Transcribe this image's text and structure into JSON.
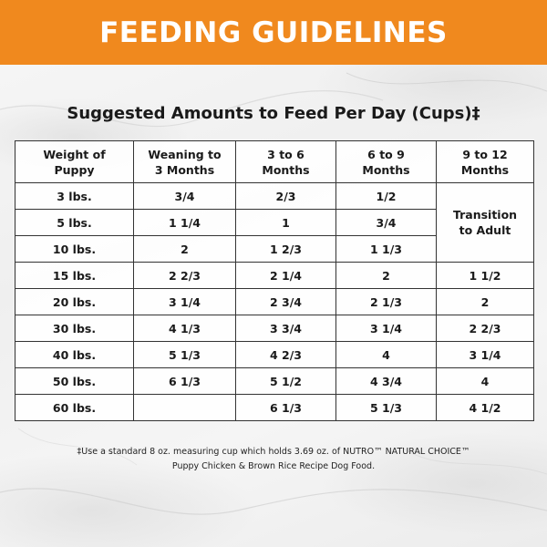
{
  "header": {
    "title": "FEEDING GUIDELINES"
  },
  "subtitle": "Suggested Amounts to Feed Per Day (Cups)‡",
  "table": {
    "headers": [
      [
        "Weight of",
        "Puppy"
      ],
      [
        "Weaning to",
        "3 Months"
      ],
      [
        "3 to 6",
        "Months"
      ],
      [
        "6 to 9",
        "Months"
      ],
      [
        "9 to 12",
        "Months"
      ]
    ],
    "rows": [
      [
        "3 lbs.",
        "3/4",
        "2/3",
        "1/2"
      ],
      [
        "5 lbs.",
        "1 1/4",
        "1",
        "3/4"
      ],
      [
        "10 lbs.",
        "2",
        "1 2/3",
        "1 1/3"
      ],
      [
        "15 lbs.",
        "2 2/3",
        "2 1/4",
        "2",
        "1 1/2"
      ],
      [
        "20 lbs.",
        "3 1/4",
        "2 3/4",
        "2 1/3",
        "2"
      ],
      [
        "30 lbs.",
        "4 1/3",
        "3 3/4",
        "3 1/4",
        "2 2/3"
      ],
      [
        "40 lbs.",
        "5 1/3",
        "4 2/3",
        "4",
        "3 1/4"
      ],
      [
        "50 lbs.",
        "6 1/3",
        "5 1/2",
        "4 3/4",
        "4"
      ],
      [
        "60 lbs.",
        "",
        "6 1/3",
        "5 1/3",
        "4 1/2"
      ]
    ],
    "merged_cell": [
      "Transition",
      "to Adult"
    ]
  },
  "footnote": {
    "line1": "‡Use a standard 8 oz. measuring cup which holds 3.69 oz. of NUTRO™ NATURAL CHOICE™",
    "line2": "Puppy Chicken & Brown Rice Recipe Dog Food."
  }
}
